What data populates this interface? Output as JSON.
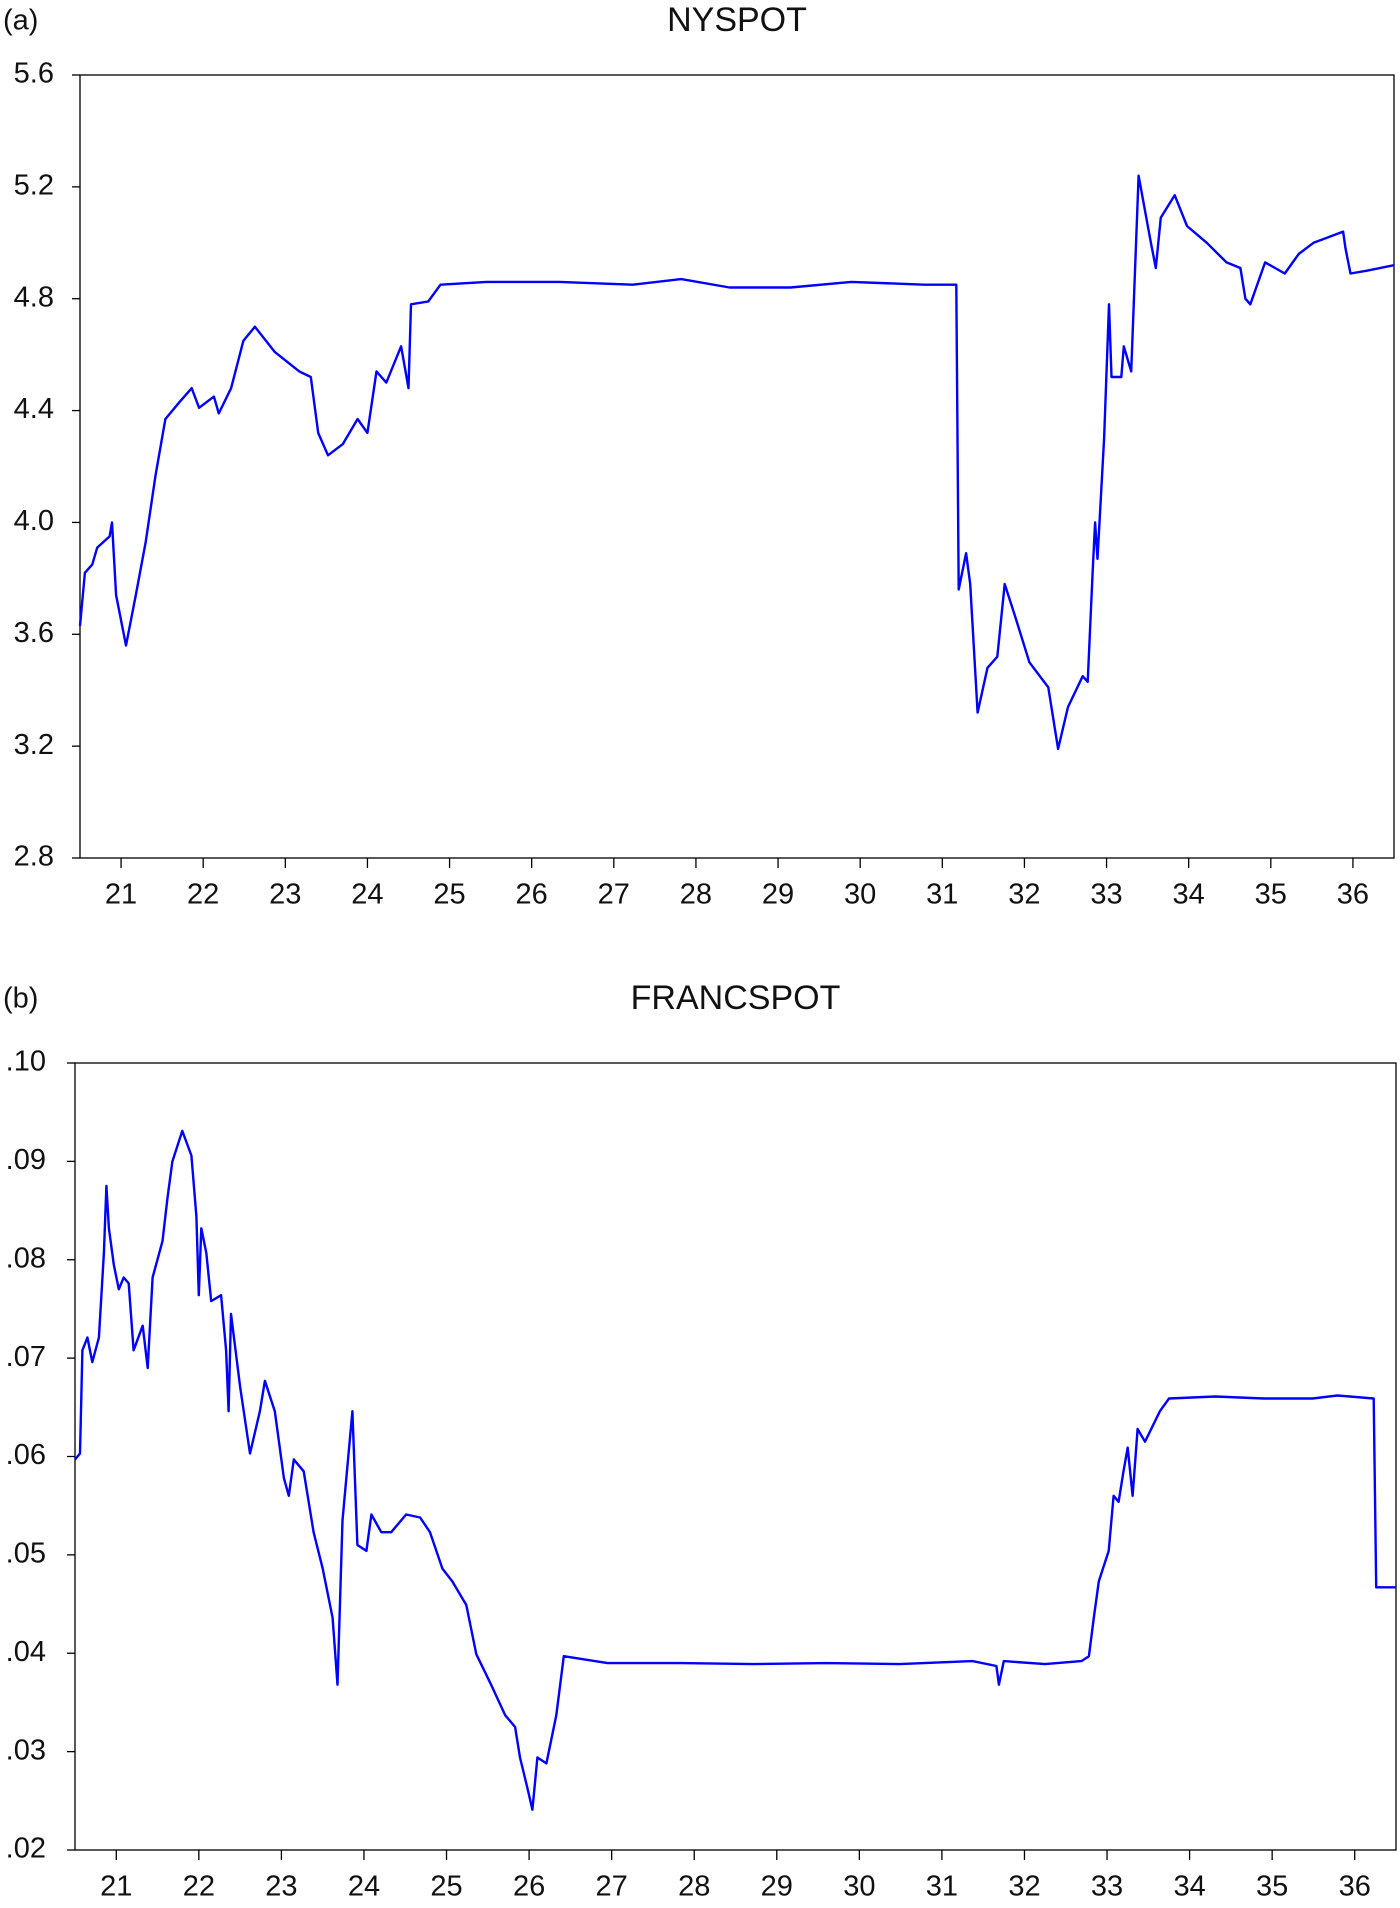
{
  "chart_data": [
    {
      "type": "line",
      "panel_label": "(a)",
      "title": "NYSPOT",
      "color": "#0000ff",
      "x": [
        21.0,
        21.06,
        21.15,
        21.21,
        21.36,
        21.39,
        21.44,
        21.56,
        21.68,
        21.8,
        21.92,
        22.04,
        22.21,
        22.36,
        22.45,
        22.63,
        22.69,
        22.84,
        22.99,
        23.13,
        23.37,
        23.67,
        23.81,
        23.9,
        24.02,
        24.2,
        24.38,
        24.5,
        24.61,
        24.73,
        24.91,
        25.0,
        25.03,
        25.24,
        25.39,
        25.95,
        26.84,
        27.73,
        28.32,
        28.91,
        29.65,
        30.39,
        31.28,
        31.67,
        31.7,
        31.79,
        31.84,
        31.93,
        32.05,
        32.17,
        32.26,
        32.38,
        32.56,
        32.79,
        32.91,
        33.03,
        33.21,
        33.27,
        33.33,
        33.36,
        33.39,
        33.47,
        33.53,
        33.56,
        33.68,
        33.71,
        33.8,
        33.89,
        34.04,
        34.1,
        34.16,
        34.33,
        34.48,
        34.72,
        34.96,
        35.13,
        35.19,
        35.25,
        35.43,
        35.67,
        35.84,
        36.02,
        36.2,
        36.38,
        36.41,
        36.47,
        36.67,
        37.0
      ],
      "values": [
        3.63,
        3.82,
        3.85,
        3.91,
        3.95,
        4.0,
        3.74,
        3.56,
        3.74,
        3.93,
        4.17,
        4.37,
        4.43,
        4.48,
        4.41,
        4.45,
        4.39,
        4.48,
        4.65,
        4.7,
        4.61,
        4.54,
        4.52,
        4.32,
        4.24,
        4.28,
        4.37,
        4.32,
        4.54,
        4.5,
        4.63,
        4.48,
        4.78,
        4.79,
        4.85,
        4.86,
        4.86,
        4.85,
        4.87,
        4.84,
        4.84,
        4.86,
        4.85,
        4.85,
        3.76,
        3.89,
        3.78,
        3.32,
        3.48,
        3.52,
        3.78,
        3.67,
        3.5,
        3.41,
        3.19,
        3.34,
        3.45,
        3.43,
        3.82,
        4.0,
        3.87,
        4.3,
        4.78,
        4.52,
        4.52,
        4.63,
        4.54,
        5.24,
        5.0,
        4.91,
        5.09,
        5.17,
        5.06,
        5.0,
        4.93,
        4.91,
        4.8,
        4.78,
        4.93,
        4.89,
        4.96,
        5.0,
        5.02,
        5.04,
        4.98,
        4.89,
        4.9,
        4.92
      ],
      "xlim": [
        21,
        37
      ],
      "xticks": [
        {
          "value": 21.5,
          "label": "21"
        },
        {
          "value": 22.5,
          "label": "22"
        },
        {
          "value": 23.5,
          "label": "23"
        },
        {
          "value": 24.5,
          "label": "24"
        },
        {
          "value": 25.5,
          "label": "25"
        },
        {
          "value": 26.5,
          "label": "26"
        },
        {
          "value": 27.5,
          "label": "27"
        },
        {
          "value": 28.5,
          "label": "28"
        },
        {
          "value": 29.5,
          "label": "29"
        },
        {
          "value": 30.5,
          "label": "30"
        },
        {
          "value": 31.5,
          "label": "31"
        },
        {
          "value": 32.5,
          "label": "32"
        },
        {
          "value": 33.5,
          "label": "33"
        },
        {
          "value": 34.5,
          "label": "34"
        },
        {
          "value": 35.5,
          "label": "35"
        },
        {
          "value": 36.5,
          "label": "36"
        }
      ],
      "ylim": [
        2.8,
        5.6
      ],
      "yticks": [
        2.8,
        3.2,
        3.6,
        {
          "value": 4,
          "label": "4.0"
        },
        4.4,
        4.8,
        5.2,
        5.6
      ],
      "grid": false
    },
    {
      "type": "line",
      "panel_label": "(b)",
      "title": "FRANCSPOT",
      "color": "#0000ff",
      "x": [
        21.0,
        21.06,
        21.09,
        21.15,
        21.21,
        21.29,
        21.35,
        21.38,
        21.41,
        21.47,
        21.53,
        21.59,
        21.65,
        21.71,
        21.82,
        21.88,
        21.94,
        22.06,
        22.12,
        22.18,
        22.3,
        22.41,
        22.47,
        22.5,
        22.53,
        22.59,
        22.65,
        22.77,
        22.83,
        22.86,
        22.89,
        23.0,
        23.12,
        23.24,
        23.3,
        23.42,
        23.53,
        23.59,
        23.65,
        23.77,
        23.89,
        24.0,
        24.12,
        24.18,
        24.24,
        24.36,
        24.42,
        24.53,
        24.59,
        24.71,
        24.83,
        25.01,
        25.18,
        25.3,
        25.45,
        25.57,
        25.74,
        25.86,
        26.04,
        26.21,
        26.33,
        26.39,
        26.48,
        26.54,
        26.6,
        26.71,
        26.83,
        26.92,
        27.45,
        28.33,
        29.22,
        30.1,
        30.99,
        31.87,
        32.16,
        32.19,
        32.25,
        32.75,
        33.19,
        33.28,
        33.34,
        33.4,
        33.52,
        33.58,
        33.64,
        33.7,
        33.75,
        33.81,
        33.87,
        33.96,
        34.14,
        34.25,
        34.81,
        35.4,
        35.99,
        36.29,
        36.73,
        36.76,
        37.0
      ],
      "values": [
        0.0597,
        0.0603,
        0.0708,
        0.0721,
        0.0696,
        0.0721,
        0.0807,
        0.0875,
        0.0832,
        0.0795,
        0.077,
        0.0782,
        0.0776,
        0.0708,
        0.0733,
        0.069,
        0.0782,
        0.0819,
        0.0863,
        0.09,
        0.0931,
        0.0906,
        0.0844,
        0.0764,
        0.0832,
        0.0807,
        0.0758,
        0.0764,
        0.0708,
        0.0646,
        0.0745,
        0.0671,
        0.0603,
        0.0646,
        0.0677,
        0.0646,
        0.0578,
        0.056,
        0.0597,
        0.0585,
        0.0523,
        0.0486,
        0.0436,
        0.0368,
        0.0535,
        0.0646,
        0.051,
        0.0504,
        0.0541,
        0.0523,
        0.0523,
        0.0541,
        0.0538,
        0.0523,
        0.0486,
        0.0473,
        0.0449,
        0.0399,
        0.0368,
        0.0337,
        0.0325,
        0.0294,
        0.0263,
        0.0241,
        0.0294,
        0.0288,
        0.0337,
        0.0397,
        0.039,
        0.039,
        0.0389,
        0.039,
        0.0389,
        0.0392,
        0.0387,
        0.0368,
        0.0392,
        0.0389,
        0.0392,
        0.0397,
        0.0436,
        0.0473,
        0.0504,
        0.056,
        0.0554,
        0.0585,
        0.0609,
        0.056,
        0.0628,
        0.0615,
        0.0646,
        0.0659,
        0.0661,
        0.0659,
        0.0659,
        0.0662,
        0.0659,
        0.0467,
        0.0467
      ],
      "xlim": [
        21,
        37
      ],
      "xticks": [
        {
          "value": 21.5,
          "label": "21"
        },
        {
          "value": 22.5,
          "label": "22"
        },
        {
          "value": 23.5,
          "label": "23"
        },
        {
          "value": 24.5,
          "label": "24"
        },
        {
          "value": 25.5,
          "label": "25"
        },
        {
          "value": 26.5,
          "label": "26"
        },
        {
          "value": 27.5,
          "label": "27"
        },
        {
          "value": 28.5,
          "label": "28"
        },
        {
          "value": 29.5,
          "label": "29"
        },
        {
          "value": 30.5,
          "label": "30"
        },
        {
          "value": 31.5,
          "label": "31"
        },
        {
          "value": 32.5,
          "label": "32"
        },
        {
          "value": 33.5,
          "label": "33"
        },
        {
          "value": 34.5,
          "label": "34"
        },
        {
          "value": 35.5,
          "label": "35"
        },
        {
          "value": 36.5,
          "label": "36"
        }
      ],
      "ylim": [
        0.02,
        0.1
      ],
      "yticks": [
        {
          "value": 0.02,
          "label": ".02"
        },
        {
          "value": 0.03,
          "label": ".03"
        },
        {
          "value": 0.04,
          "label": ".04"
        },
        {
          "value": 0.05,
          "label": ".05"
        },
        {
          "value": 0.06,
          "label": ".06"
        },
        {
          "value": 0.07,
          "label": ".07"
        },
        {
          "value": 0.08,
          "label": ".08"
        },
        {
          "value": 0.09,
          "label": ".09"
        },
        {
          "value": 0.1,
          "label": ".10"
        }
      ],
      "grid": false
    }
  ]
}
